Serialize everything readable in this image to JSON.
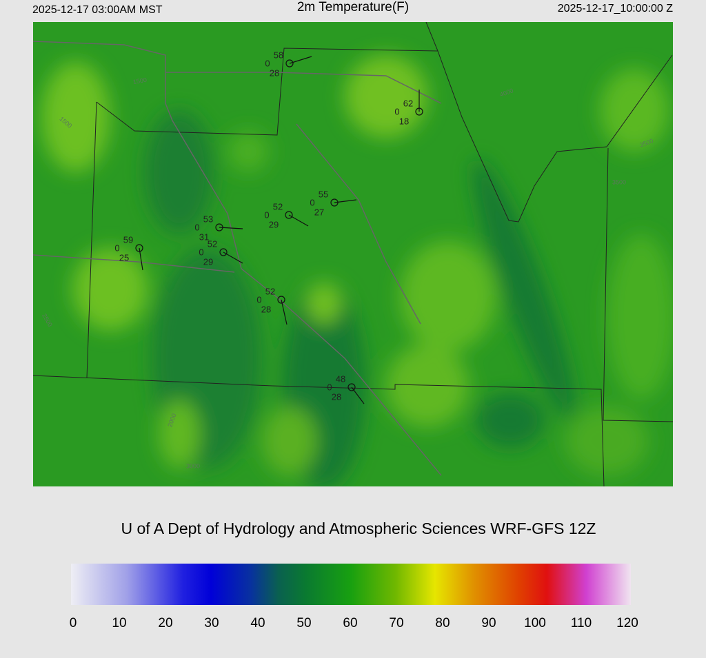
{
  "header": {
    "local_time": "2025-12-17 03:00AM MST",
    "title": "2m Temperature(F)",
    "valid_time": "2025-12-17_10:00:00 Z"
  },
  "stations": [
    {
      "temperature": 58,
      "left": 0,
      "dewpoint": 28
    },
    {
      "temperature": 62,
      "left": 0,
      "dewpoint": 18
    },
    {
      "temperature": 55,
      "left": 0,
      "dewpoint": 27
    },
    {
      "temperature": 52,
      "left": 0,
      "dewpoint": 29
    },
    {
      "temperature": 53,
      "left": 0,
      "dewpoint": 31
    },
    {
      "temperature": 52,
      "left": 0,
      "dewpoint": 29
    },
    {
      "temperature": 59,
      "left": 0,
      "dewpoint": 25
    },
    {
      "temperature": 52,
      "left": 0,
      "dewpoint": 28
    },
    {
      "temperature": 48,
      "left": 0,
      "dewpoint": 28
    }
  ],
  "contour_labels": [
    "1500",
    "1500",
    "3500",
    "3500",
    "4000",
    "2500",
    "2000",
    "3000"
  ],
  "credit": "U of A Dept of Hydrology and Atmospheric Sciences WRF-GFS 12Z",
  "colorbar": {
    "ticks": [
      0,
      10,
      20,
      30,
      40,
      50,
      60,
      70,
      80,
      90,
      100,
      110,
      120
    ]
  }
}
